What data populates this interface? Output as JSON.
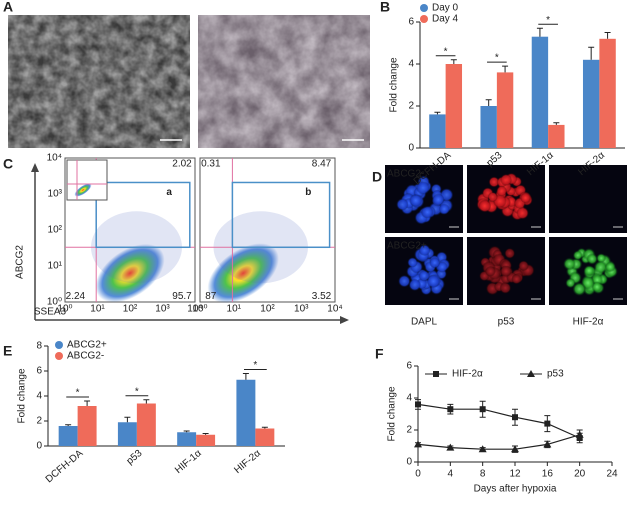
{
  "panel_labels": [
    "A",
    "B",
    "C",
    "D",
    "E",
    "F"
  ],
  "flow": {
    "y_label": "ABCG2",
    "x_label": "SSEA3",
    "ticks": [
      "10⁰",
      "10¹",
      "10²",
      "10³",
      "10⁴"
    ],
    "plots": [
      {
        "gate": "a",
        "quadrants": [
          "2.02",
          "2.24",
          "95.7"
        ]
      },
      {
        "gate": "b",
        "quadrants": [
          "0.31",
          "8.47",
          "87",
          "3.52"
        ]
      }
    ]
  },
  "images": {
    "rows": [
      "ABCG2-",
      "ABCG2+"
    ],
    "columns": [
      "DAPL",
      "p53",
      "HIF-2α"
    ]
  },
  "chart_data": [
    {
      "type": "bar",
      "y_label": "Fold change",
      "categories": [
        "DCFH-DA",
        "p53",
        "HIF-1α",
        "HIF-2α"
      ],
      "series": [
        {
          "name": "Day 0",
          "color": "#4a86c8",
          "values": [
            1.6,
            2.0,
            5.3,
            4.2
          ],
          "errors": [
            0.1,
            0.3,
            0.4,
            0.6
          ]
        },
        {
          "name": "Day 4",
          "color": "#ef6b5a",
          "values": [
            4.0,
            3.6,
            1.1,
            5.2
          ],
          "errors": [
            0.2,
            0.3,
            0.1,
            0.3
          ]
        }
      ],
      "significance": [
        "*",
        "*",
        "*",
        null
      ],
      "ylim": [
        0,
        6
      ],
      "yticks": [
        0,
        2,
        4,
        6
      ]
    },
    {
      "type": "bar",
      "y_label": "Fold change",
      "categories": [
        "DCFH-DA",
        "p53",
        "HIF-1α",
        "HIF-2α"
      ],
      "series": [
        {
          "name": "ABCG2+",
          "color": "#4a86c8",
          "values": [
            1.6,
            1.9,
            1.1,
            5.3
          ],
          "errors": [
            0.1,
            0.4,
            0.1,
            0.5
          ]
        },
        {
          "name": "ABCG2-",
          "color": "#ef6b5a",
          "values": [
            3.2,
            3.4,
            0.9,
            1.4
          ],
          "errors": [
            0.4,
            0.3,
            0.1,
            0.1
          ]
        }
      ],
      "significance": [
        "*",
        "*",
        null,
        "*"
      ],
      "ylim": [
        0,
        8
      ],
      "yticks": [
        0,
        2,
        4,
        6,
        8
      ]
    },
    {
      "type": "line",
      "x_label": "Days after hypoxia",
      "y_label": "Fold change",
      "x": [
        0,
        4,
        8,
        12,
        16,
        20
      ],
      "series": [
        {
          "name": "HIF-2α",
          "color": "#222222",
          "marker": "square",
          "values": [
            3.6,
            3.3,
            3.3,
            2.8,
            2.4,
            1.5
          ],
          "errors": [
            0.3,
            0.3,
            0.5,
            0.5,
            0.5,
            0.3
          ]
        },
        {
          "name": "p53",
          "color": "#222222",
          "marker": "triangle",
          "values": [
            1.1,
            0.9,
            0.8,
            0.8,
            1.1,
            1.7
          ],
          "errors": [
            0.1,
            0.1,
            0.1,
            0.2,
            0.2,
            0.3
          ]
        }
      ],
      "xlim": [
        0,
        24
      ],
      "xticks": [
        0,
        4,
        8,
        12,
        16,
        20,
        24
      ],
      "ylim": [
        0,
        6
      ],
      "yticks": [
        0,
        2,
        4,
        6
      ]
    }
  ]
}
